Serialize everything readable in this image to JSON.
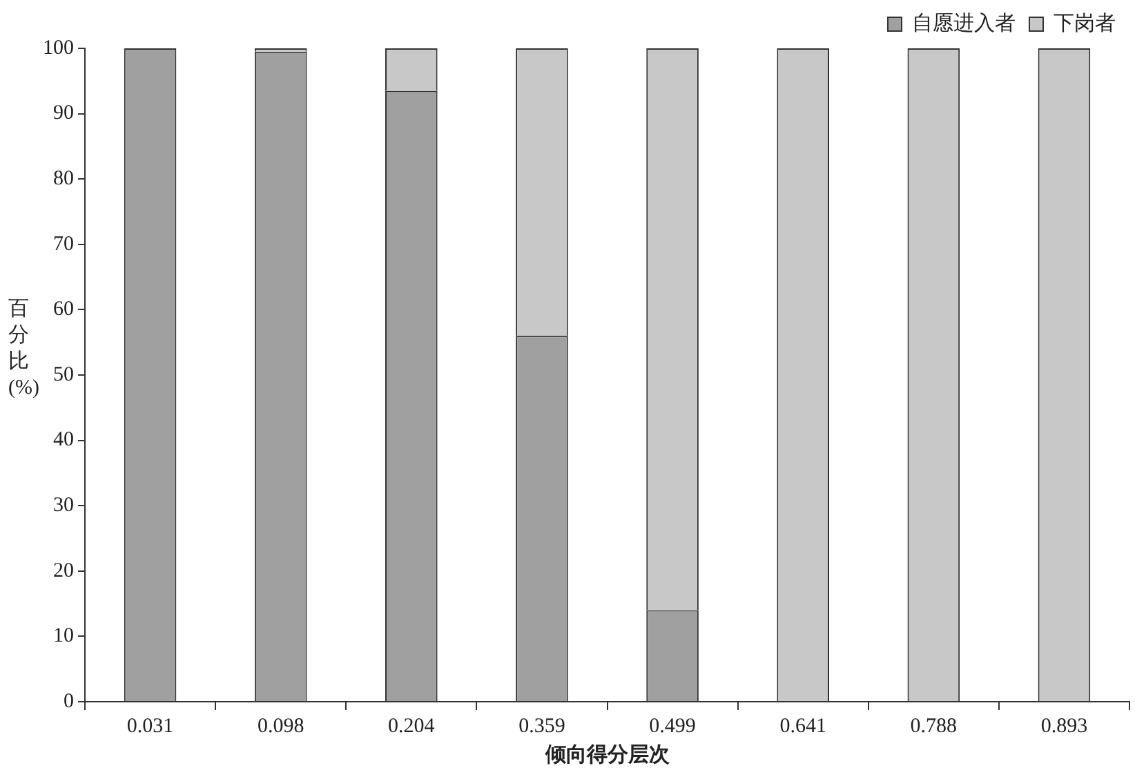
{
  "chart_data": {
    "type": "bar",
    "stacked": true,
    "xlabel": "倾向得分层次",
    "ylabel": "百分比(%)",
    "categories": [
      "0.031",
      "0.098",
      "0.204",
      "0.359",
      "0.499",
      "0.641",
      "0.788",
      "0.893"
    ],
    "series": [
      {
        "name": "自愿进入者",
        "color": "#a0a0a0",
        "values": [
          100,
          99.5,
          93.5,
          56,
          14,
          0,
          0,
          0
        ]
      },
      {
        "name": "下岗者",
        "color": "#c8c8c8",
        "values": [
          0,
          0.5,
          6.5,
          44,
          86,
          100,
          100,
          100
        ]
      }
    ],
    "ylim": [
      0,
      100
    ],
    "yticks": [
      0,
      10,
      20,
      30,
      40,
      50,
      60,
      70,
      80,
      90,
      100
    ],
    "grid": false,
    "legend": "top"
  }
}
